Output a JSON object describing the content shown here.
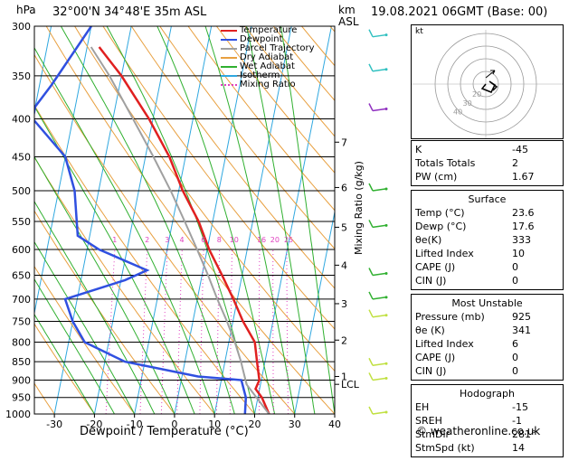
{
  "header": {
    "location": "32°00'N  34°48'E  35m  ASL",
    "datetime": "19.08.2021  06GMT  (Base: 00)",
    "hpa_label": "hPa",
    "km_label": "km",
    "asl_label": "ASL",
    "footer": "© weatheronline.co.uk"
  },
  "chart_data": {
    "type": "line",
    "chart_kind": "skew-T log-P diagram",
    "xlabel": "Dewpoint / Temperature (°C)",
    "ylabel": "Mixing Ratio (g/kg)",
    "x_ticks": [
      -30,
      -20,
      -10,
      0,
      10,
      20,
      30,
      40
    ],
    "pressure_ticks": [
      300,
      350,
      400,
      450,
      500,
      550,
      600,
      650,
      700,
      750,
      800,
      850,
      900,
      950,
      1000
    ],
    "x_range": [
      -35,
      40
    ],
    "p_range": [
      300,
      1000
    ],
    "km_ticks": [
      {
        "label": "7",
        "p": 430
      },
      {
        "label": "6",
        "p": 495
      },
      {
        "label": "5",
        "p": 560
      },
      {
        "label": "4",
        "p": 630
      },
      {
        "label": "3",
        "p": 710
      },
      {
        "label": "2",
        "p": 795
      },
      {
        "label": "1",
        "p": 890
      },
      {
        "label": "LCL",
        "p": 912
      }
    ],
    "mixing_ratio_labels": [
      "1",
      "2",
      "3",
      "4",
      "6",
      "8",
      "10",
      "16",
      "20",
      "25"
    ],
    "mixing_ratio_values": [
      1,
      2,
      3,
      4,
      6,
      8,
      10,
      16,
      20,
      25
    ],
    "mixing_ratio_label_p": 590,
    "legend": [
      "Temperature",
      "Dewpoint",
      "Parcel Trajectory",
      "Dry Adiabat",
      "Wet Adiabat",
      "Isotherm",
      "Mixing Ratio"
    ],
    "series": [
      {
        "name": "Temperature",
        "color": "#e02020",
        "points": [
          [
            1000,
            23.6
          ],
          [
            950,
            21
          ],
          [
            925,
            19
          ],
          [
            900,
            19.5
          ],
          [
            850,
            18
          ],
          [
            800,
            16.5
          ],
          [
            750,
            12.5
          ],
          [
            700,
            9
          ],
          [
            650,
            5
          ],
          [
            600,
            0.5
          ],
          [
            550,
            -3.5
          ],
          [
            500,
            -9
          ],
          [
            450,
            -14
          ],
          [
            400,
            -21
          ],
          [
            350,
            -30
          ],
          [
            320,
            -37
          ]
        ]
      },
      {
        "name": "Dewpoint",
        "color": "#3050e0",
        "points": [
          [
            1000,
            17.6
          ],
          [
            950,
            17
          ],
          [
            925,
            16
          ],
          [
            900,
            15
          ],
          [
            890,
            4
          ],
          [
            850,
            -15
          ],
          [
            800,
            -26
          ],
          [
            750,
            -30
          ],
          [
            700,
            -33
          ],
          [
            660,
            -19
          ],
          [
            640,
            -14
          ],
          [
            600,
            -27
          ],
          [
            575,
            -33
          ],
          [
            500,
            -36
          ],
          [
            450,
            -40
          ],
          [
            400,
            -50
          ],
          [
            385,
            -50
          ],
          [
            360,
            -47
          ],
          [
            300,
            -40
          ]
        ]
      },
      {
        "name": "Parcel Trajectory",
        "color": "#a0a0a0",
        "points": [
          [
            1000,
            23.6
          ],
          [
            912,
            16.5
          ],
          [
            850,
            14
          ],
          [
            800,
            11.5
          ],
          [
            750,
            8.5
          ],
          [
            700,
            5
          ],
          [
            650,
            1.5
          ],
          [
            600,
            -2.5
          ],
          [
            550,
            -7
          ],
          [
            500,
            -12
          ],
          [
            450,
            -18
          ],
          [
            400,
            -25
          ],
          [
            350,
            -33
          ],
          [
            320,
            -39
          ]
        ]
      }
    ]
  },
  "indices": {
    "rows": [
      {
        "label": "K",
        "value": "-45"
      },
      {
        "label": "Totals Totals",
        "value": "2"
      },
      {
        "label": "PW (cm)",
        "value": "1.67"
      }
    ]
  },
  "surface": {
    "title": "Surface",
    "rows": [
      {
        "label": "Temp (°C)",
        "value": "23.6"
      },
      {
        "label": "Dewp (°C)",
        "value": "17.6"
      },
      {
        "label": "θe(K)",
        "value": "333"
      },
      {
        "label": "Lifted Index",
        "value": "10"
      },
      {
        "label": "CAPE (J)",
        "value": "0"
      },
      {
        "label": "CIN (J)",
        "value": "0"
      }
    ]
  },
  "most_unstable": {
    "title": "Most Unstable",
    "rows": [
      {
        "label": "Pressure (mb)",
        "value": "925"
      },
      {
        "label": "θe (K)",
        "value": "341"
      },
      {
        "label": "Lifted Index",
        "value": "6"
      },
      {
        "label": "CAPE (J)",
        "value": "0"
      },
      {
        "label": "CIN (J)",
        "value": "0"
      }
    ]
  },
  "hodograph": {
    "title": "Hodograph",
    "box_label": "kt",
    "ring_labels": [
      "40",
      "30",
      "20"
    ],
    "rows": [
      {
        "label": "EH",
        "value": "-15"
      },
      {
        "label": "SREH",
        "value": "-1"
      },
      {
        "label": "StmDir",
        "value": "281°"
      },
      {
        "label": "StmSpd (kt)",
        "value": "14"
      }
    ]
  },
  "colors": {
    "temperature": "#e02020",
    "dewpoint": "#3050e0",
    "dry_adiabat": "#e8a040",
    "wet_adiabat": "#30b030",
    "isotherm": "#30a8e0",
    "mixing_ratio": "#e040c0",
    "parcel": "#a0a0a0"
  }
}
